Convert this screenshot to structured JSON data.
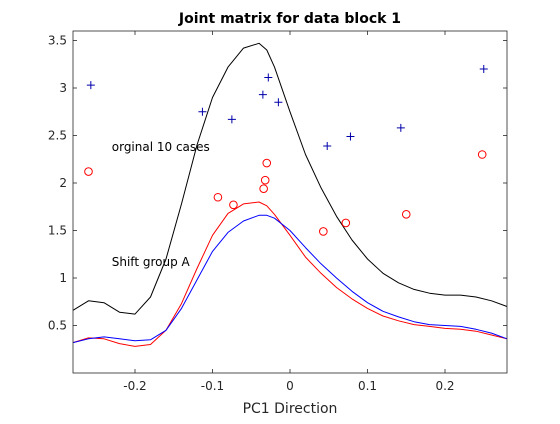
{
  "chart_data": {
    "type": "line",
    "title": "Joint matrix for data block 1",
    "xlabel": "PC1 Direction",
    "ylabel": "",
    "xlim": [
      -0.28,
      0.28
    ],
    "ylim": [
      0,
      3.6
    ],
    "grid": false,
    "xticks": [
      -0.2,
      -0.1,
      0,
      0.1,
      0.2
    ],
    "xtick_labels": [
      "-0.2",
      "-0.1",
      "0",
      "0.1",
      "0.2"
    ],
    "yticks": [
      0.5,
      1,
      1.5,
      2,
      2.5,
      3,
      3.5
    ],
    "ytick_labels": [
      "0.5",
      "1",
      "1.5",
      "2",
      "2.5",
      "3",
      "3.5"
    ],
    "annotations": [
      {
        "text": "orginal 10 cases",
        "x": -0.23,
        "y": 2.38
      },
      {
        "text": "Shift group A",
        "x": -0.23,
        "y": 1.17
      }
    ],
    "series": [
      {
        "kind": "line",
        "color": "#000000",
        "x": [
          -0.28,
          -0.26,
          -0.24,
          -0.22,
          -0.2,
          -0.18,
          -0.16,
          -0.14,
          -0.12,
          -0.1,
          -0.08,
          -0.06,
          -0.04,
          -0.03,
          -0.02,
          0,
          0.02,
          0.04,
          0.06,
          0.08,
          0.1,
          0.12,
          0.14,
          0.16,
          0.18,
          0.2,
          0.22,
          0.24,
          0.26,
          0.28
        ],
        "y": [
          0.66,
          0.76,
          0.74,
          0.64,
          0.62,
          0.8,
          1.2,
          1.78,
          2.4,
          2.9,
          3.22,
          3.42,
          3.47,
          3.4,
          3.22,
          2.75,
          2.3,
          1.95,
          1.65,
          1.4,
          1.2,
          1.05,
          0.95,
          0.88,
          0.84,
          0.82,
          0.82,
          0.8,
          0.76,
          0.7
        ]
      },
      {
        "kind": "line",
        "color": "#ff0000",
        "x": [
          -0.28,
          -0.26,
          -0.24,
          -0.22,
          -0.2,
          -0.18,
          -0.16,
          -0.14,
          -0.12,
          -0.1,
          -0.08,
          -0.06,
          -0.04,
          -0.03,
          -0.02,
          0,
          0.02,
          0.04,
          0.06,
          0.08,
          0.1,
          0.12,
          0.14,
          0.16,
          0.18,
          0.2,
          0.22,
          0.24,
          0.26,
          0.28
        ],
        "y": [
          0.32,
          0.37,
          0.36,
          0.31,
          0.28,
          0.3,
          0.45,
          0.73,
          1.1,
          1.45,
          1.68,
          1.78,
          1.8,
          1.76,
          1.67,
          1.45,
          1.22,
          1.05,
          0.9,
          0.78,
          0.68,
          0.6,
          0.55,
          0.51,
          0.49,
          0.47,
          0.46,
          0.44,
          0.4,
          0.36
        ]
      },
      {
        "kind": "line",
        "color": "#0000ff",
        "x": [
          -0.28,
          -0.26,
          -0.24,
          -0.22,
          -0.2,
          -0.18,
          -0.16,
          -0.14,
          -0.12,
          -0.1,
          -0.08,
          -0.06,
          -0.04,
          -0.03,
          -0.02,
          0,
          0.02,
          0.04,
          0.06,
          0.08,
          0.1,
          0.12,
          0.14,
          0.16,
          0.18,
          0.2,
          0.22,
          0.24,
          0.26,
          0.28
        ],
        "y": [
          0.32,
          0.36,
          0.38,
          0.36,
          0.34,
          0.35,
          0.45,
          0.68,
          0.98,
          1.28,
          1.48,
          1.6,
          1.66,
          1.66,
          1.63,
          1.5,
          1.32,
          1.15,
          1.0,
          0.86,
          0.74,
          0.65,
          0.59,
          0.54,
          0.51,
          0.5,
          0.49,
          0.46,
          0.42,
          0.36
        ]
      },
      {
        "kind": "markers",
        "marker": "plus",
        "color": "#0000aa",
        "points": [
          [
            -0.257,
            3.03
          ],
          [
            -0.113,
            2.75
          ],
          [
            -0.075,
            2.67
          ],
          [
            -0.035,
            2.93
          ],
          [
            -0.028,
            3.11
          ],
          [
            -0.015,
            2.85
          ],
          [
            0.048,
            2.39
          ],
          [
            0.078,
            2.49
          ],
          [
            0.143,
            2.58
          ],
          [
            0.25,
            3.2
          ]
        ]
      },
      {
        "kind": "markers",
        "marker": "circle",
        "color": "#ff0000",
        "points": [
          [
            -0.26,
            2.12
          ],
          [
            -0.093,
            1.85
          ],
          [
            -0.073,
            1.77
          ],
          [
            -0.034,
            1.94
          ],
          [
            -0.032,
            2.03
          ],
          [
            -0.03,
            2.21
          ],
          [
            0.043,
            1.49
          ],
          [
            0.072,
            1.58
          ],
          [
            0.15,
            1.67
          ],
          [
            0.248,
            2.3
          ]
        ]
      }
    ]
  }
}
